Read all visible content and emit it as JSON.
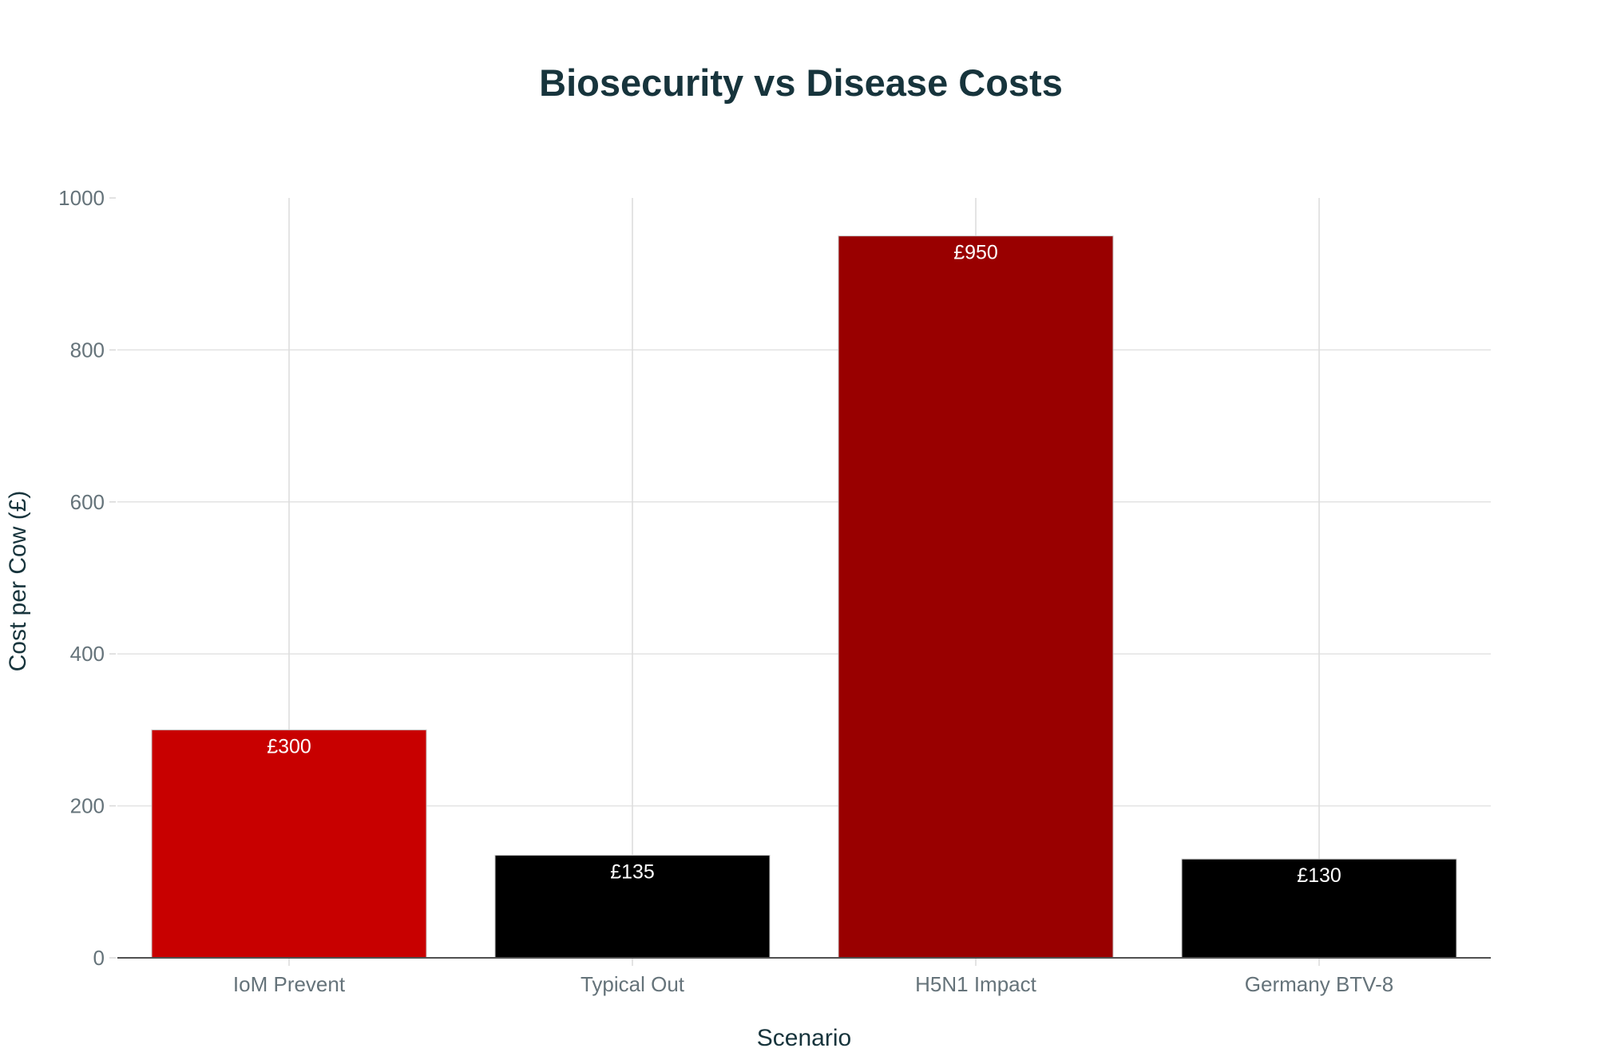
{
  "chart_data": {
    "type": "bar",
    "title": "Biosecurity vs Disease Costs",
    "xlabel": "Scenario",
    "ylabel": "Cost per Cow (£)",
    "categories": [
      "IoM Prevent",
      "Typical Out",
      "H5N1 Impact",
      "Germany BTV-8"
    ],
    "values": [
      300,
      135,
      950,
      130
    ],
    "data_labels": [
      "£300",
      "£135",
      "£950",
      "£130"
    ],
    "bar_colors": [
      "#c80000",
      "#000000",
      "#990000",
      "#000000"
    ],
    "ylim": [
      0,
      1000
    ],
    "yticks": [
      0,
      200,
      400,
      600,
      800,
      1000
    ],
    "ytick_labels": [
      "0",
      "200",
      "400",
      "600",
      "800",
      "1000"
    ],
    "grid": true,
    "legend": "none"
  }
}
